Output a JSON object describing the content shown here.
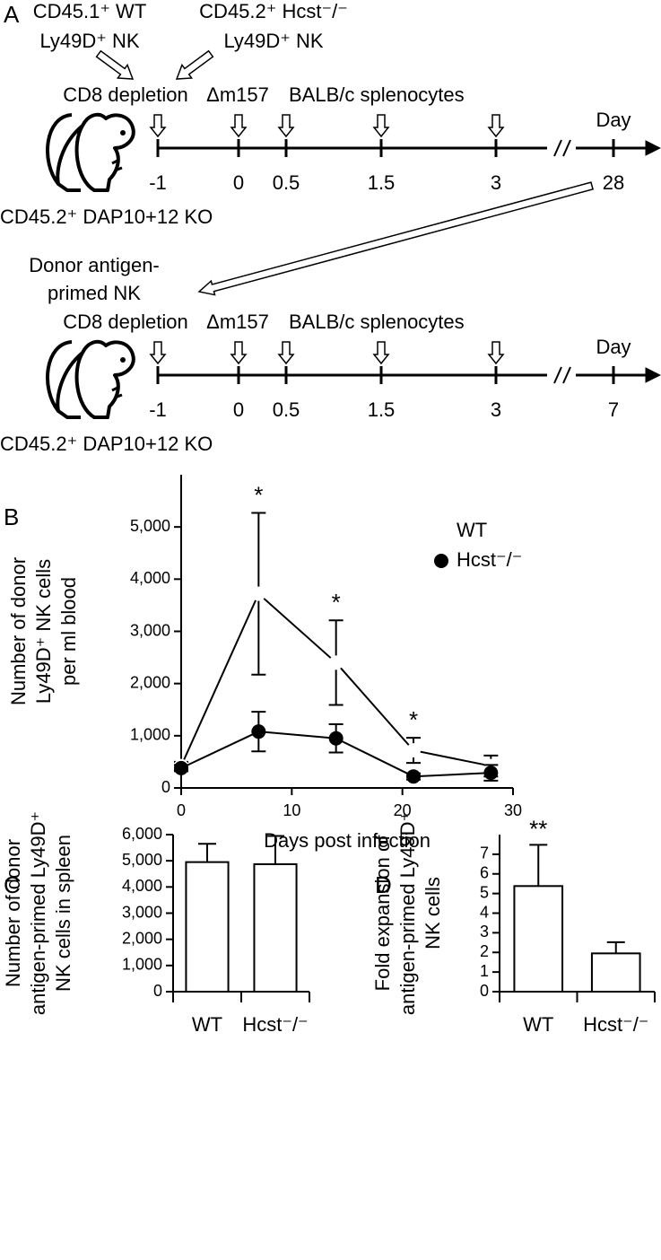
{
  "panel_a": {
    "label": "A",
    "donors": [
      [
        "CD45.1⁺ WT",
        "Ly49D⁺ NK"
      ],
      [
        "CD45.2⁺ Hcst⁻/⁻",
        "Ly49D⁺ NK"
      ]
    ],
    "transfer_label": [
      "Donor antigen-",
      "primed NK"
    ],
    "rows": [
      {
        "events": [
          "CD8 depletion",
          "Δm157",
          "BALB/c splenocytes"
        ],
        "axis_label": "Day",
        "times": [
          "-1",
          "0",
          "0.5",
          "1.5",
          "3",
          "28"
        ],
        "recipient": "CD45.2⁺ DAP10+12 KO"
      },
      {
        "events": [
          "CD8 depletion",
          "Δm157",
          "BALB/c splenocytes"
        ],
        "axis_label": "Day",
        "times": [
          "-1",
          "0",
          "0.5",
          "1.5",
          "3",
          "7"
        ],
        "recipient": "CD45.2⁺ DAP10+12 KO"
      }
    ]
  },
  "chart_data": [
    {
      "type": "line",
      "label": "B",
      "ylabel": [
        "Number of donor",
        "Ly49D⁺ NK cells",
        "per ml blood"
      ],
      "xlabel": "Days post infection",
      "x": [
        0,
        7,
        14,
        21,
        28
      ],
      "series": [
        {
          "name": "WT",
          "color": "#ffffff",
          "values": [
            420,
            3720,
            2400,
            720,
            420
          ],
          "errors": [
            80,
            1550,
            810,
            240,
            200
          ]
        },
        {
          "name": "Hcst⁻/⁻",
          "color": "#000000",
          "values": [
            380,
            1080,
            950,
            220,
            290
          ],
          "errors": [
            60,
            380,
            270,
            60,
            150
          ]
        }
      ],
      "annotations": [
        "*",
        "*",
        "*"
      ],
      "xlim": [
        0,
        30
      ],
      "xticks": [
        0,
        10,
        20,
        30
      ],
      "ylim": [
        0,
        6000
      ],
      "yticks": [
        0,
        {
          "value": 1000,
          "label": "1,000"
        },
        {
          "value": 2000,
          "label": "2,000"
        },
        {
          "value": 3000,
          "label": "3,000"
        },
        {
          "value": 4000,
          "label": "4,000"
        },
        {
          "value": 5000,
          "label": "5,000"
        }
      ],
      "legend": "upper right"
    },
    {
      "type": "bar",
      "label": "C",
      "ylabel": [
        "Number of donor",
        "antigen-primed Ly49D⁺",
        "NK cells in spleen"
      ],
      "categories": [
        "WT",
        "Hcst⁻/⁻"
      ],
      "values": [
        4950,
        4870
      ],
      "errors": [
        700,
        1080
      ],
      "color": "#ffffff",
      "ylim": [
        0,
        6000
      ],
      "yticks": [
        0,
        {
          "value": 1000,
          "label": "1,000"
        },
        {
          "value": 2000,
          "label": "2,000"
        },
        {
          "value": 3000,
          "label": "3,000"
        },
        {
          "value": 4000,
          "label": "4,000"
        },
        {
          "value": 5000,
          "label": "5,000"
        },
        {
          "value": 6000,
          "label": "6,000"
        }
      ]
    },
    {
      "type": "bar",
      "label": "D",
      "ylabel": [
        "Fold expansion of",
        "antigen-primed Ly49D⁺",
        "NK cells"
      ],
      "categories": [
        "WT",
        "Hcst⁻/⁻"
      ],
      "values": [
        5.38,
        1.95
      ],
      "errors": [
        2.1,
        0.57
      ],
      "color": "#ffffff",
      "annotations": [
        "**"
      ],
      "ylim": [
        0,
        8
      ],
      "yticks": [
        0,
        1,
        2,
        3,
        4,
        5,
        6,
        7
      ]
    }
  ]
}
